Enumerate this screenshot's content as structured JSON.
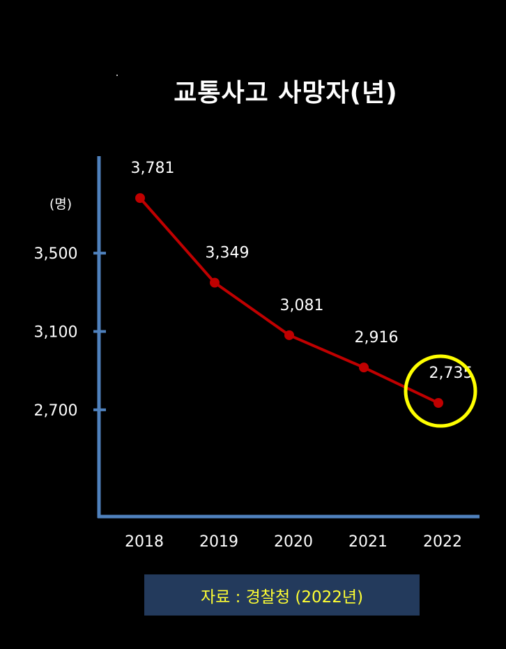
{
  "chart_data": {
    "type": "line",
    "title": "교통사고 사망자(년)",
    "ylabel": "(명)",
    "xlabel": "",
    "categories": [
      "2018",
      "2019",
      "2020",
      "2021",
      "2022"
    ],
    "values": [
      3781,
      3349,
      3081,
      2916,
      2735
    ],
    "value_labels": [
      "3,781",
      "3,349",
      "3,081",
      "2,916",
      "2,735"
    ],
    "yticks": [
      2700,
      3100,
      3500
    ],
    "ytick_labels": [
      "2,700",
      "3,100",
      "3,500"
    ],
    "ylim": [
      2155,
      3995
    ],
    "highlight": {
      "category": "2022",
      "shape": "circle",
      "color": "#ffff00"
    },
    "colors": {
      "line": "#c00000",
      "marker": "#c00000",
      "axis": "#4f81bd",
      "text": "#ffffff"
    },
    "grid": false
  },
  "source": {
    "text": "자료 : 경찰청 (2022년)",
    "text_color": "#ffff33",
    "box_color": "#233a5c"
  }
}
